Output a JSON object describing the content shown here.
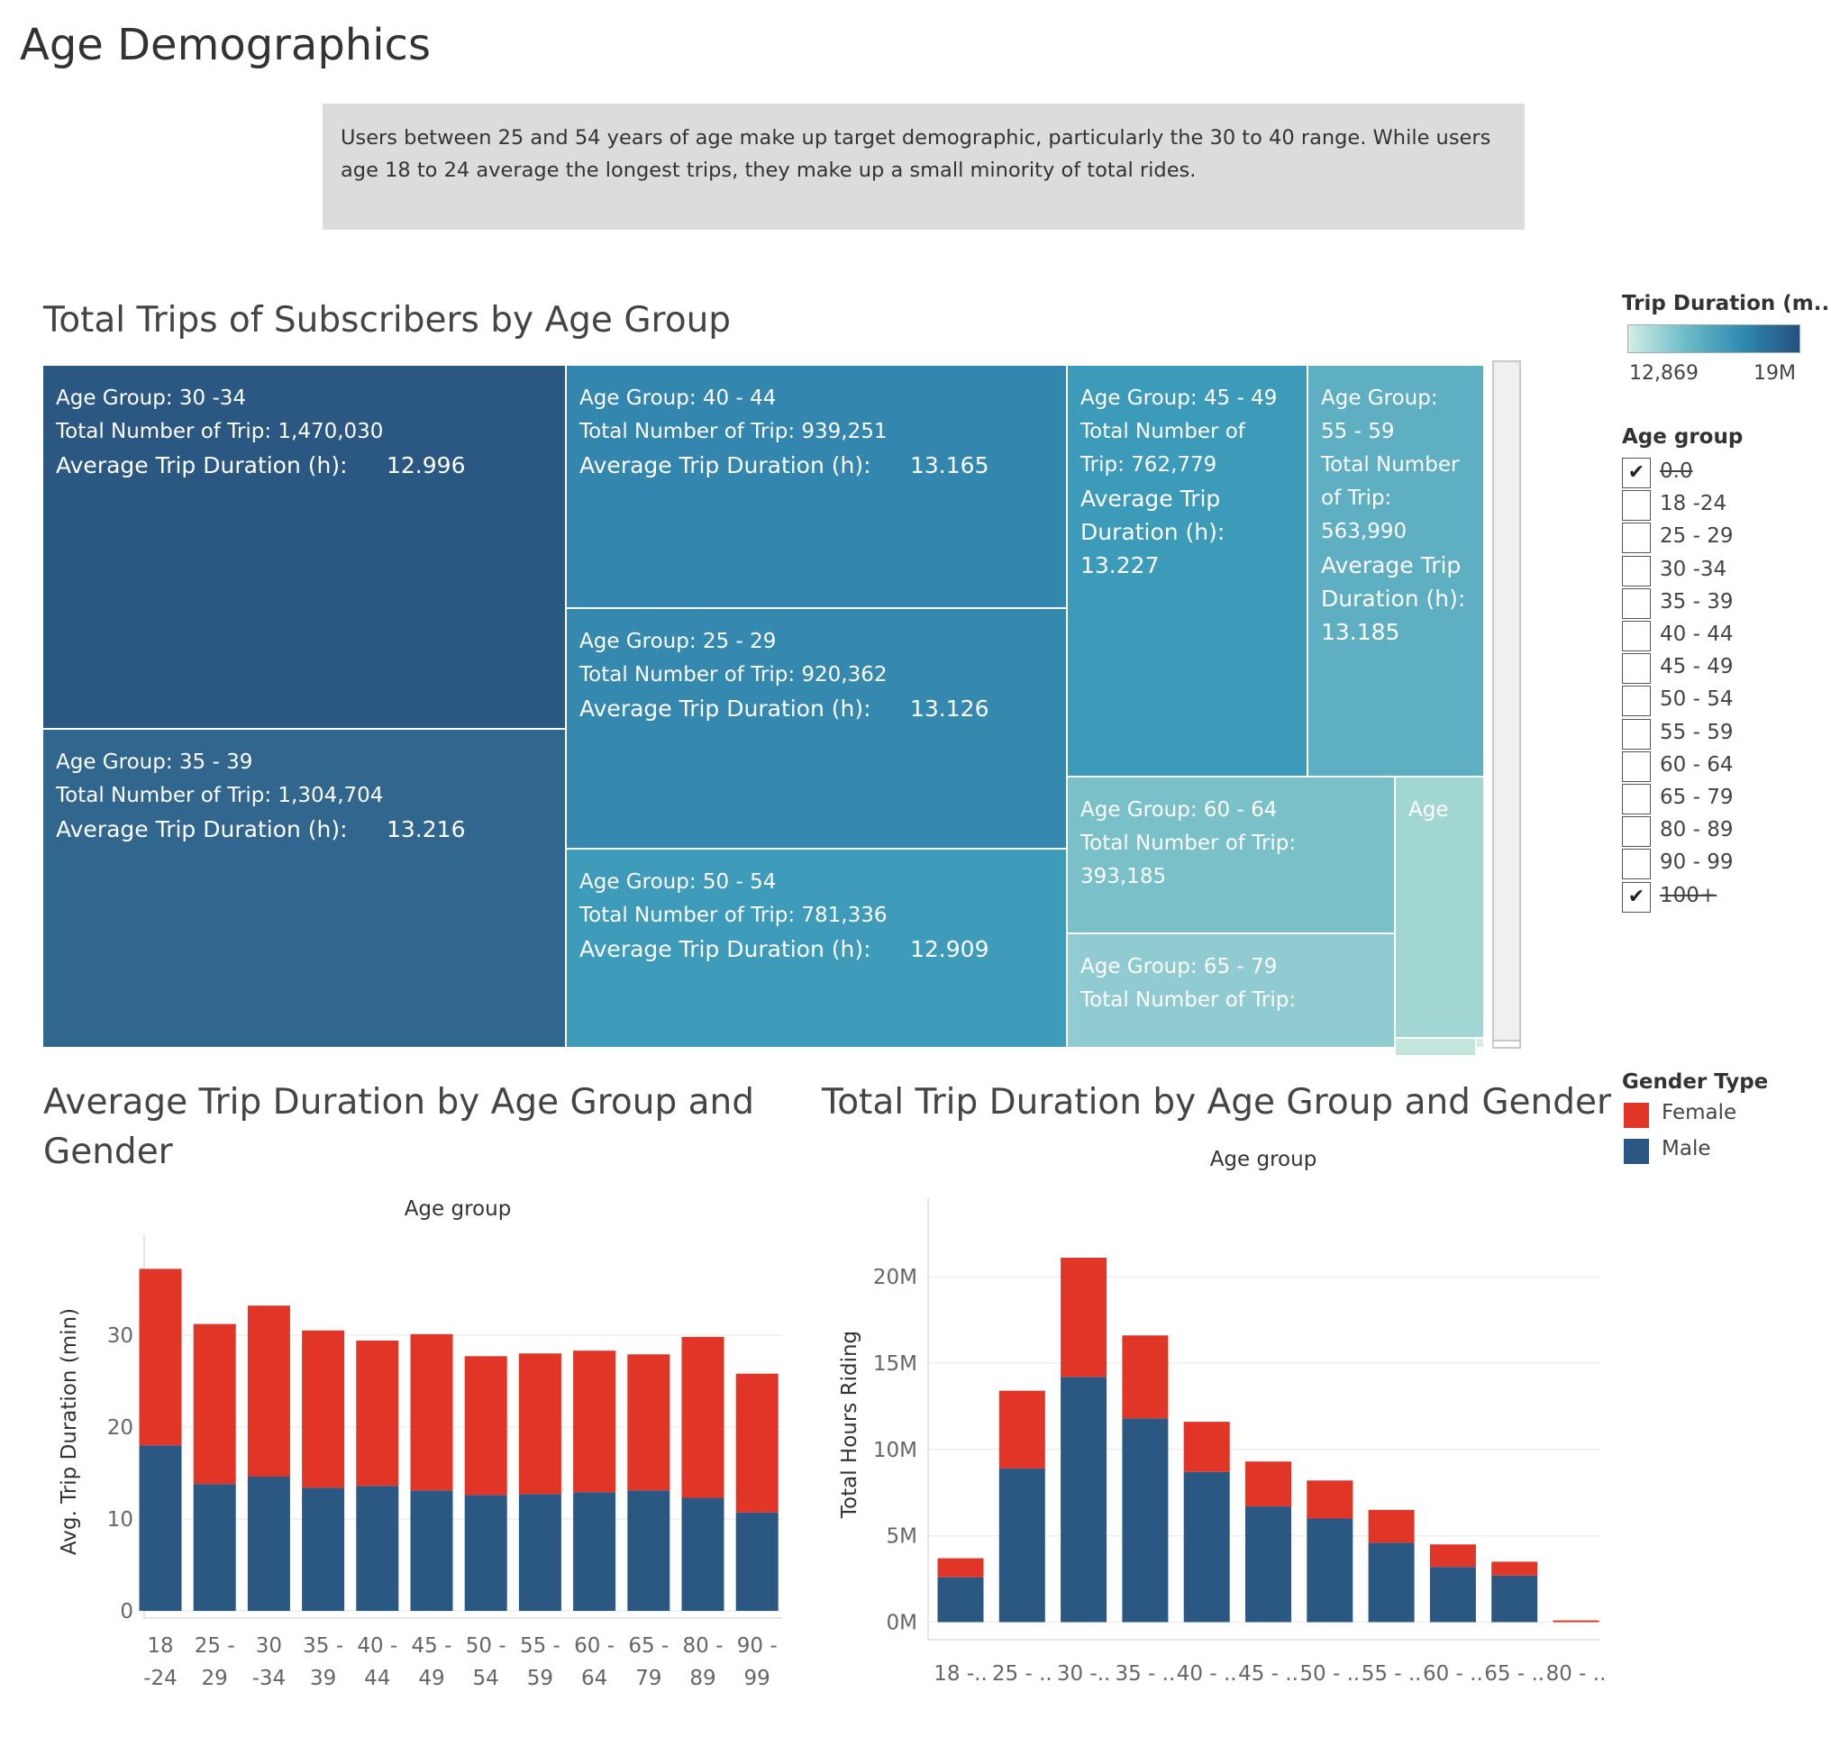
{
  "page_title": "Age Demographics",
  "summary": "Users between 25 and 54 years of age make up target demographic, particularly the 30 to 40 range. While users age 18 to 24 average the longest trips, they make up a small minority of total rides.",
  "treemap": {
    "title": "Total Trips of Subscribers by Age Group",
    "tiles": [
      {
        "group": "Age Group: 30 -34",
        "trips": "Total Number of Trip: 1,470,030",
        "avg_label": "Average Trip Duration (h):",
        "avg_value": "12.996",
        "color": "#2b5783"
      },
      {
        "group": "Age Group: 35 - 39",
        "trips": "Total Number of Trip: 1,304,704",
        "avg_label": "Average Trip Duration (h):",
        "avg_value": "13.216",
        "color": "#31668f"
      },
      {
        "group": "Age Group: 40 - 44",
        "trips": "Total Number of Trip: 939,251",
        "avg_label": "Average Trip Duration (h):",
        "avg_value": "13.165",
        "color": "#3386ad"
      },
      {
        "group": "Age Group: 25 - 29",
        "trips": "Total Number of Trip: 920,362",
        "avg_label": "Average Trip Duration (h):",
        "avg_value": "13.126",
        "color": "#3589ae"
      },
      {
        "group": "Age Group: 50 - 54",
        "trips": "Total Number of Trip: 781,336",
        "avg_label": "Average Trip Duration (h):",
        "avg_value": "12.909",
        "color": "#3e9bb9"
      },
      {
        "group": "Age Group: 45 - 49",
        "trips": "Total Number of Trip: 762,779",
        "avg_label": "Average Trip Duration (h):",
        "avg_value": "13.227",
        "color": "#3d9bba"
      },
      {
        "group": "Age Group: 55 - 59",
        "trips": "Total Number of Trip: 563,990",
        "avg_label": "Average Trip Duration (h):",
        "avg_value": "13.185",
        "color": "#5eafc2"
      },
      {
        "group": "Age Group: 60 - 64",
        "trips": "Total Number of Trip: 393,185",
        "avg_label": "",
        "avg_value": "",
        "color": "#79c0c9"
      },
      {
        "group": "Age Group: 65 - 79",
        "trips": "Total Number of Trip:",
        "avg_label": "",
        "avg_value": "",
        "color": "#8fcbd0"
      },
      {
        "group": "Age",
        "trips": "",
        "avg_label": "",
        "avg_value": "",
        "color": "#a2d6d3"
      },
      {
        "group": "",
        "trips": "",
        "avg_label": "",
        "avg_value": "",
        "color": "#c3e6dc"
      },
      {
        "group": "",
        "trips": "",
        "avg_label": "",
        "avg_value": "",
        "color": "#d2eee6"
      }
    ]
  },
  "legend_duration": {
    "title": "Trip Duration (m..",
    "min_label": "12,869",
    "max_label": "19M",
    "colors": [
      "#d2eee6",
      "#25507f"
    ]
  },
  "legend_age": {
    "title": "Age group",
    "items": [
      {
        "label": "0.0",
        "checked": true,
        "struck": true
      },
      {
        "label": "18 -24",
        "checked": false,
        "struck": false
      },
      {
        "label": "25 - 29",
        "checked": false,
        "struck": false
      },
      {
        "label": "30 -34",
        "checked": false,
        "struck": false
      },
      {
        "label": "35 - 39",
        "checked": false,
        "struck": false
      },
      {
        "label": "40 - 44",
        "checked": false,
        "struck": false
      },
      {
        "label": "45 - 49",
        "checked": false,
        "struck": false
      },
      {
        "label": "50 - 54",
        "checked": false,
        "struck": false
      },
      {
        "label": "55 - 59",
        "checked": false,
        "struck": false
      },
      {
        "label": "60 - 64",
        "checked": false,
        "struck": false
      },
      {
        "label": "65 - 79",
        "checked": false,
        "struck": false
      },
      {
        "label": "80 - 89",
        "checked": false,
        "struck": false
      },
      {
        "label": "90 - 99",
        "checked": false,
        "struck": false
      },
      {
        "label": "100+",
        "checked": true,
        "struck": true
      }
    ],
    "check_glyph": "✔"
  },
  "legend_gender": {
    "title": "Gender Type",
    "items": [
      {
        "label": "Female",
        "color": "#e03527"
      },
      {
        "label": "Male",
        "color": "#2b5783"
      }
    ]
  },
  "chart_data": [
    {
      "type": "bar",
      "stacked": true,
      "title": "Average Trip Duration by Age Group and Gender",
      "xlabel": "Age group",
      "ylabel": "Avg. Trip Duration (min)",
      "ylim": [
        0,
        39
      ],
      "yticks": [
        0,
        10,
        20,
        30
      ],
      "grid": true,
      "categories": [
        [
          "18",
          "-24"
        ],
        [
          "25 -",
          "29"
        ],
        [
          "30",
          "-34"
        ],
        [
          "35 -",
          "39"
        ],
        [
          "40 -",
          "44"
        ],
        [
          "45 -",
          "49"
        ],
        [
          "50 -",
          "54"
        ],
        [
          "55 -",
          "59"
        ],
        [
          "60 -",
          "64"
        ],
        [
          "65 -",
          "79"
        ],
        [
          "80 -",
          "89"
        ],
        [
          "90 -",
          "99"
        ]
      ],
      "series": [
        {
          "name": "Male",
          "color": "#2b5783",
          "values": [
            18.0,
            13.8,
            14.6,
            13.4,
            13.6,
            13.1,
            12.6,
            12.7,
            12.9,
            13.1,
            12.3,
            10.7
          ]
        },
        {
          "name": "Female",
          "color": "#e03527",
          "values": [
            19.2,
            17.4,
            18.6,
            17.1,
            15.8,
            17.0,
            15.1,
            15.3,
            15.4,
            14.8,
            17.5,
            15.1
          ]
        }
      ]
    },
    {
      "type": "bar",
      "stacked": true,
      "title": "Total Trip Duration by Age Group and Gender",
      "xlabel": "Age group",
      "ylabel": "Total Hours Riding",
      "ylim": [
        -600000,
        23500000
      ],
      "yticks": [
        0,
        5000000,
        10000000,
        15000000,
        20000000
      ],
      "ytick_labels": [
        "0M",
        "5M",
        "10M",
        "15M",
        "20M"
      ],
      "grid": true,
      "categories": [
        "18 -..",
        "25 - ..",
        "30 -..",
        "35 - ..",
        "40 - ..",
        "45 - ..",
        "50 - ..",
        "55 - ..",
        "60 - ..",
        "65 - ..",
        "80 - .."
      ],
      "series": [
        {
          "name": "Male",
          "color": "#2b5783",
          "values": [
            2600000,
            8900000,
            14200000,
            11800000,
            8700000,
            6700000,
            6000000,
            4600000,
            3200000,
            2700000,
            0
          ]
        },
        {
          "name": "Female",
          "color": "#e03527",
          "values": [
            1100000,
            4500000,
            6900000,
            4800000,
            2900000,
            2600000,
            2200000,
            1900000,
            1300000,
            800000,
            100000
          ]
        }
      ]
    }
  ]
}
